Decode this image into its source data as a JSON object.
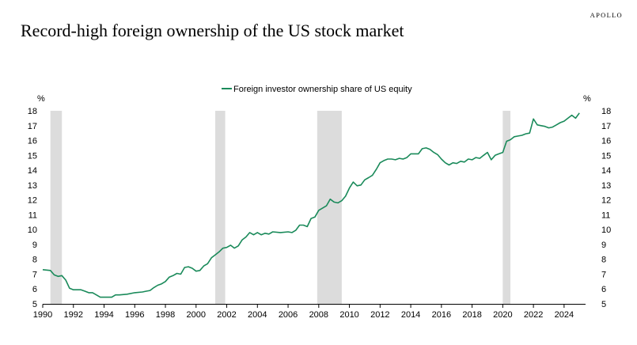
{
  "brand": "APOLLO",
  "chart_data": {
    "type": "line",
    "title": "Record-high foreign ownership of the US stock market",
    "ylabel_left": "%",
    "ylabel_right": "%",
    "ylim": [
      5,
      18
    ],
    "xlim": [
      1990,
      2025.4
    ],
    "yticks": [
      5,
      6,
      7,
      8,
      9,
      10,
      11,
      12,
      13,
      14,
      15,
      16,
      17,
      18
    ],
    "xticks": [
      1990,
      1992,
      1994,
      1996,
      1998,
      2000,
      2002,
      2004,
      2006,
      2008,
      2010,
      2012,
      2014,
      2016,
      2018,
      2020,
      2022,
      2024
    ],
    "grid": false,
    "legend_position": "top-center",
    "recessions": [
      [
        1990.5,
        1991.25
      ],
      [
        2001.25,
        2001.9
      ],
      [
        2007.9,
        2009.5
      ],
      [
        2020.0,
        2020.5
      ]
    ],
    "series": [
      {
        "name": "Foreign investor ownership share of US equity",
        "color": "#1a8a5a",
        "points": [
          [
            1990.0,
            7.3
          ],
          [
            1990.5,
            7.25
          ],
          [
            1990.75,
            6.95
          ],
          [
            1991.0,
            6.85
          ],
          [
            1991.25,
            6.9
          ],
          [
            1991.5,
            6.6
          ],
          [
            1991.75,
            6.05
          ],
          [
            1992.0,
            5.95
          ],
          [
            1992.5,
            5.95
          ],
          [
            1992.75,
            5.85
          ],
          [
            1993.0,
            5.75
          ],
          [
            1993.25,
            5.75
          ],
          [
            1993.5,
            5.6
          ],
          [
            1993.75,
            5.45
          ],
          [
            1994.0,
            5.45
          ],
          [
            1994.5,
            5.45
          ],
          [
            1994.75,
            5.6
          ],
          [
            1995.0,
            5.6
          ],
          [
            1995.5,
            5.65
          ],
          [
            1996.0,
            5.75
          ],
          [
            1996.5,
            5.8
          ],
          [
            1996.75,
            5.85
          ],
          [
            1997.0,
            5.9
          ],
          [
            1997.25,
            6.1
          ],
          [
            1997.5,
            6.25
          ],
          [
            1997.75,
            6.35
          ],
          [
            1998.0,
            6.5
          ],
          [
            1998.25,
            6.8
          ],
          [
            1998.5,
            6.9
          ],
          [
            1998.75,
            7.05
          ],
          [
            1999.0,
            7.0
          ],
          [
            1999.25,
            7.45
          ],
          [
            1999.5,
            7.5
          ],
          [
            1999.75,
            7.4
          ],
          [
            2000.0,
            7.2
          ],
          [
            2000.25,
            7.25
          ],
          [
            2000.5,
            7.55
          ],
          [
            2000.75,
            7.7
          ],
          [
            2001.0,
            8.1
          ],
          [
            2001.25,
            8.3
          ],
          [
            2001.5,
            8.5
          ],
          [
            2001.75,
            8.75
          ],
          [
            2002.0,
            8.8
          ],
          [
            2002.25,
            8.95
          ],
          [
            2002.5,
            8.75
          ],
          [
            2002.75,
            8.9
          ],
          [
            2003.0,
            9.3
          ],
          [
            2003.25,
            9.5
          ],
          [
            2003.5,
            9.8
          ],
          [
            2003.75,
            9.65
          ],
          [
            2004.0,
            9.8
          ],
          [
            2004.25,
            9.65
          ],
          [
            2004.5,
            9.75
          ],
          [
            2004.75,
            9.7
          ],
          [
            2005.0,
            9.85
          ],
          [
            2005.5,
            9.8
          ],
          [
            2006.0,
            9.85
          ],
          [
            2006.25,
            9.8
          ],
          [
            2006.5,
            9.95
          ],
          [
            2006.75,
            10.3
          ],
          [
            2007.0,
            10.3
          ],
          [
            2007.25,
            10.2
          ],
          [
            2007.5,
            10.75
          ],
          [
            2007.75,
            10.85
          ],
          [
            2008.0,
            11.3
          ],
          [
            2008.25,
            11.45
          ],
          [
            2008.5,
            11.6
          ],
          [
            2008.75,
            12.05
          ],
          [
            2009.0,
            11.85
          ],
          [
            2009.25,
            11.8
          ],
          [
            2009.5,
            11.95
          ],
          [
            2009.75,
            12.25
          ],
          [
            2010.0,
            12.8
          ],
          [
            2010.25,
            13.2
          ],
          [
            2010.5,
            12.95
          ],
          [
            2010.75,
            13.0
          ],
          [
            2011.0,
            13.35
          ],
          [
            2011.25,
            13.5
          ],
          [
            2011.5,
            13.65
          ],
          [
            2011.75,
            14.05
          ],
          [
            2012.0,
            14.5
          ],
          [
            2012.25,
            14.65
          ],
          [
            2012.5,
            14.75
          ],
          [
            2012.75,
            14.75
          ],
          [
            2013.0,
            14.7
          ],
          [
            2013.25,
            14.8
          ],
          [
            2013.5,
            14.75
          ],
          [
            2013.75,
            14.85
          ],
          [
            2014.0,
            15.1
          ],
          [
            2014.25,
            15.1
          ],
          [
            2014.5,
            15.1
          ],
          [
            2014.75,
            15.45
          ],
          [
            2015.0,
            15.5
          ],
          [
            2015.25,
            15.4
          ],
          [
            2015.5,
            15.2
          ],
          [
            2015.75,
            15.05
          ],
          [
            2016.0,
            14.75
          ],
          [
            2016.25,
            14.5
          ],
          [
            2016.5,
            14.35
          ],
          [
            2016.75,
            14.5
          ],
          [
            2017.0,
            14.45
          ],
          [
            2017.25,
            14.6
          ],
          [
            2017.5,
            14.55
          ],
          [
            2017.75,
            14.75
          ],
          [
            2018.0,
            14.7
          ],
          [
            2018.25,
            14.85
          ],
          [
            2018.5,
            14.8
          ],
          [
            2018.75,
            15.0
          ],
          [
            2019.0,
            15.2
          ],
          [
            2019.25,
            14.7
          ],
          [
            2019.5,
            15.0
          ],
          [
            2019.75,
            15.1
          ],
          [
            2020.0,
            15.2
          ],
          [
            2020.25,
            15.95
          ],
          [
            2020.5,
            16.05
          ],
          [
            2020.75,
            16.25
          ],
          [
            2021.0,
            16.3
          ],
          [
            2021.25,
            16.35
          ],
          [
            2021.5,
            16.45
          ],
          [
            2021.75,
            16.5
          ],
          [
            2022.0,
            17.45
          ],
          [
            2022.25,
            17.05
          ],
          [
            2022.5,
            17.0
          ],
          [
            2022.75,
            16.95
          ],
          [
            2023.0,
            16.85
          ],
          [
            2023.25,
            16.9
          ],
          [
            2023.5,
            17.05
          ],
          [
            2023.75,
            17.2
          ],
          [
            2024.0,
            17.3
          ],
          [
            2024.25,
            17.5
          ],
          [
            2024.5,
            17.7
          ],
          [
            2024.75,
            17.5
          ],
          [
            2025.0,
            17.85
          ]
        ]
      }
    ]
  }
}
